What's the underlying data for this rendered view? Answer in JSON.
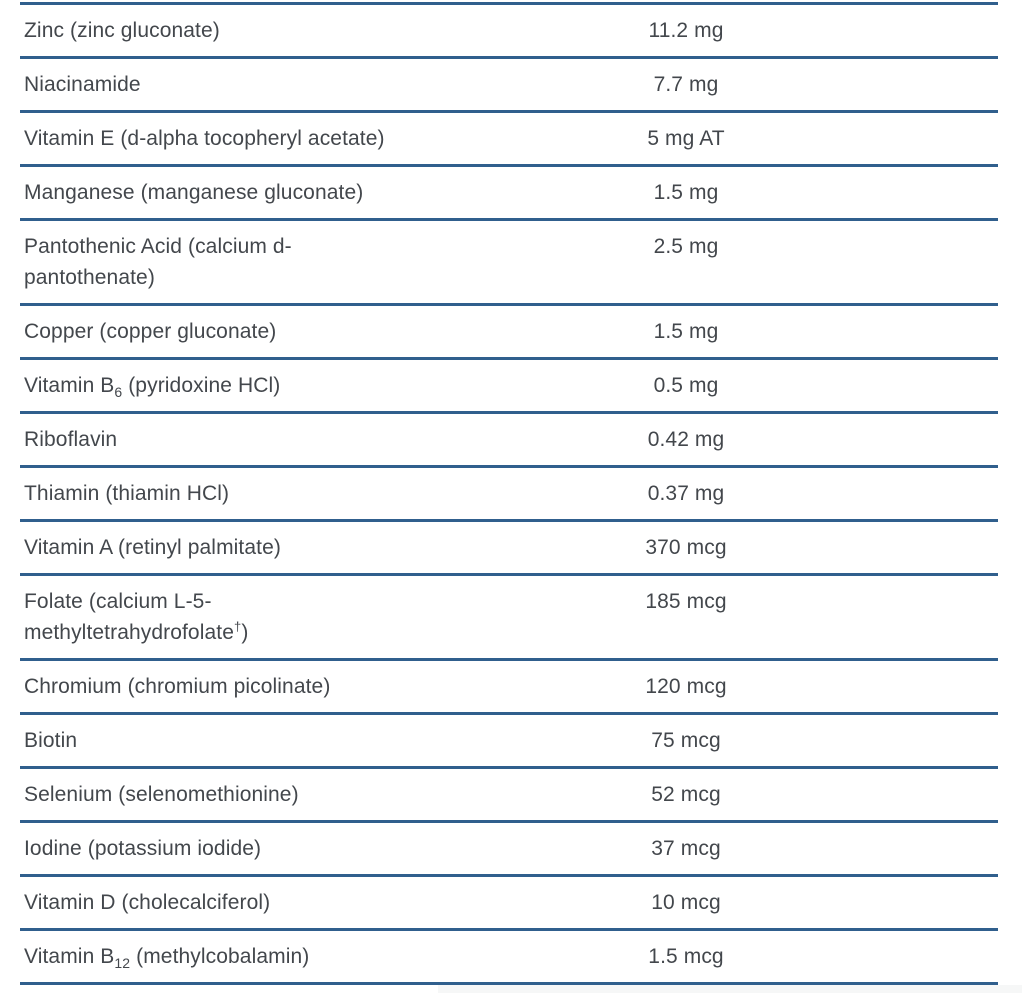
{
  "colors": {
    "rule_blue": "#305f8d",
    "text_gray": "#43474c"
  },
  "table": {
    "name": "supplement-facts-table",
    "rows": [
      {
        "label_parts": [
          {
            "t": "Zinc (zinc gluconate)"
          }
        ],
        "amount": "11.2 mg"
      },
      {
        "label_parts": [
          {
            "t": "Niacinamide"
          }
        ],
        "amount": "7.7 mg"
      },
      {
        "label_parts": [
          {
            "t": "Vitamin E (d-alpha tocopheryl acetate)"
          }
        ],
        "amount": "5 mg AT"
      },
      {
        "label_parts": [
          {
            "t": "Manganese (manganese gluconate)"
          }
        ],
        "amount": "1.5 mg"
      },
      {
        "label_parts": [
          {
            "t": "Pantothenic Acid (calcium d-"
          },
          {
            "br": true
          },
          {
            "t": "pantothenate)"
          }
        ],
        "amount": "2.5 mg"
      },
      {
        "label_parts": [
          {
            "t": "Copper (copper gluconate)"
          }
        ],
        "amount": "1.5 mg"
      },
      {
        "label_parts": [
          {
            "t": "Vitamin B"
          },
          {
            "t": "6",
            "sub": true
          },
          {
            "t": " (pyridoxine HCl)"
          }
        ],
        "amount": "0.5 mg"
      },
      {
        "label_parts": [
          {
            "t": "Riboflavin"
          }
        ],
        "amount": "0.42 mg"
      },
      {
        "label_parts": [
          {
            "t": "Thiamin (thiamin HCl)"
          }
        ],
        "amount": "0.37 mg"
      },
      {
        "label_parts": [
          {
            "t": "Vitamin A (retinyl palmitate)"
          }
        ],
        "amount": "370 mcg"
      },
      {
        "label_parts": [
          {
            "t": "Folate (calcium L-5-"
          },
          {
            "br": true
          },
          {
            "t": "methyltetrahydrofolate"
          },
          {
            "t": "†",
            "sup": true
          },
          {
            "t": ")"
          }
        ],
        "amount": "185 mcg"
      },
      {
        "label_parts": [
          {
            "t": "Chromium (chromium picolinate)"
          }
        ],
        "amount": "120 mcg"
      },
      {
        "label_parts": [
          {
            "t": "Biotin"
          }
        ],
        "amount": "75 mcg"
      },
      {
        "label_parts": [
          {
            "t": "Selenium (selenomethionine)"
          }
        ],
        "amount": "52 mcg"
      },
      {
        "label_parts": [
          {
            "t": "Iodine (potassium iodide)"
          }
        ],
        "amount": "37 mcg"
      },
      {
        "label_parts": [
          {
            "t": "Vitamin D (cholecalciferol)"
          }
        ],
        "amount": "10 mcg"
      },
      {
        "label_parts": [
          {
            "t": "Vitamin B"
          },
          {
            "t": "12",
            "sub": true
          },
          {
            "t": " (methylcobalamin)"
          }
        ],
        "amount": "1.5 mcg"
      }
    ]
  }
}
